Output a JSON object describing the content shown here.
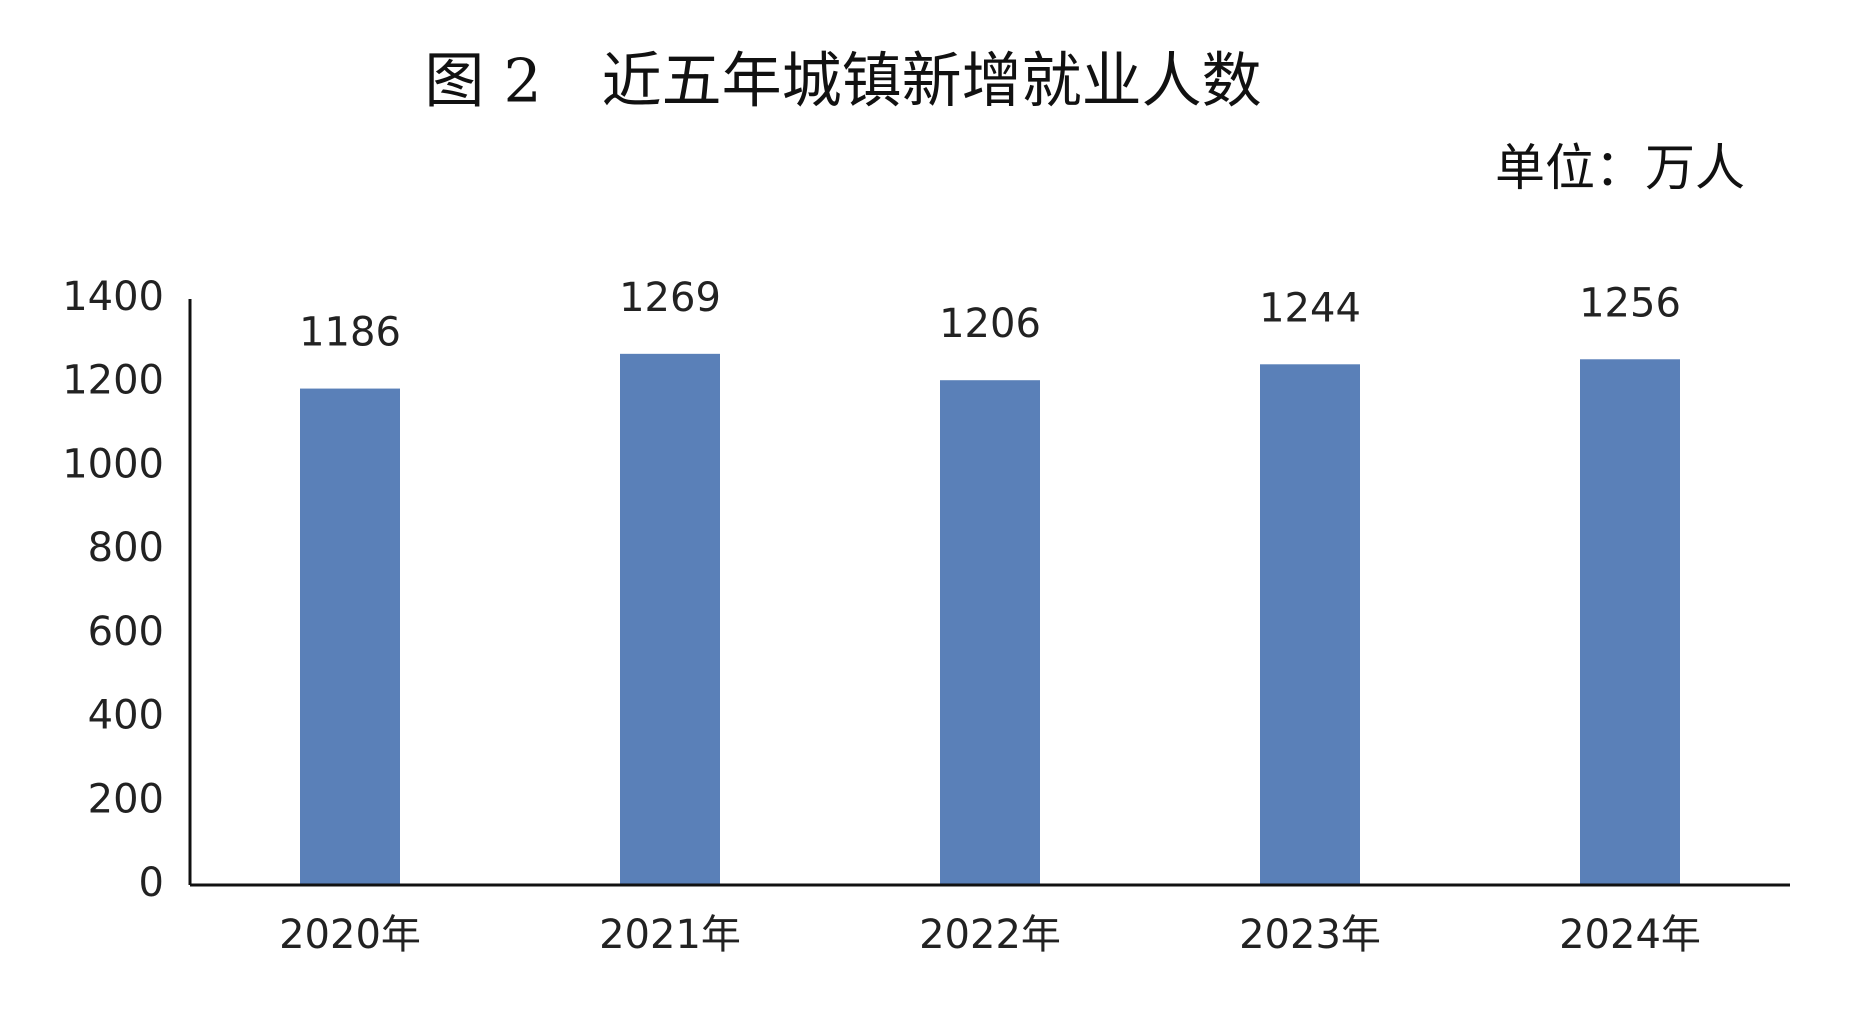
{
  "chart_data": {
    "type": "bar",
    "title": "图 2　近五年城镇新增就业人数",
    "subtitle": "单位：万人",
    "categories": [
      "2020年",
      "2021年",
      "2022年",
      "2023年",
      "2024年"
    ],
    "values": [
      1186,
      1269,
      1206,
      1244,
      1256
    ],
    "color": "#5a80b8",
    "ylim": [
      0,
      1400
    ],
    "yticks": [
      0,
      200,
      400,
      600,
      800,
      1000,
      1200,
      1400
    ],
    "grid": false
  }
}
